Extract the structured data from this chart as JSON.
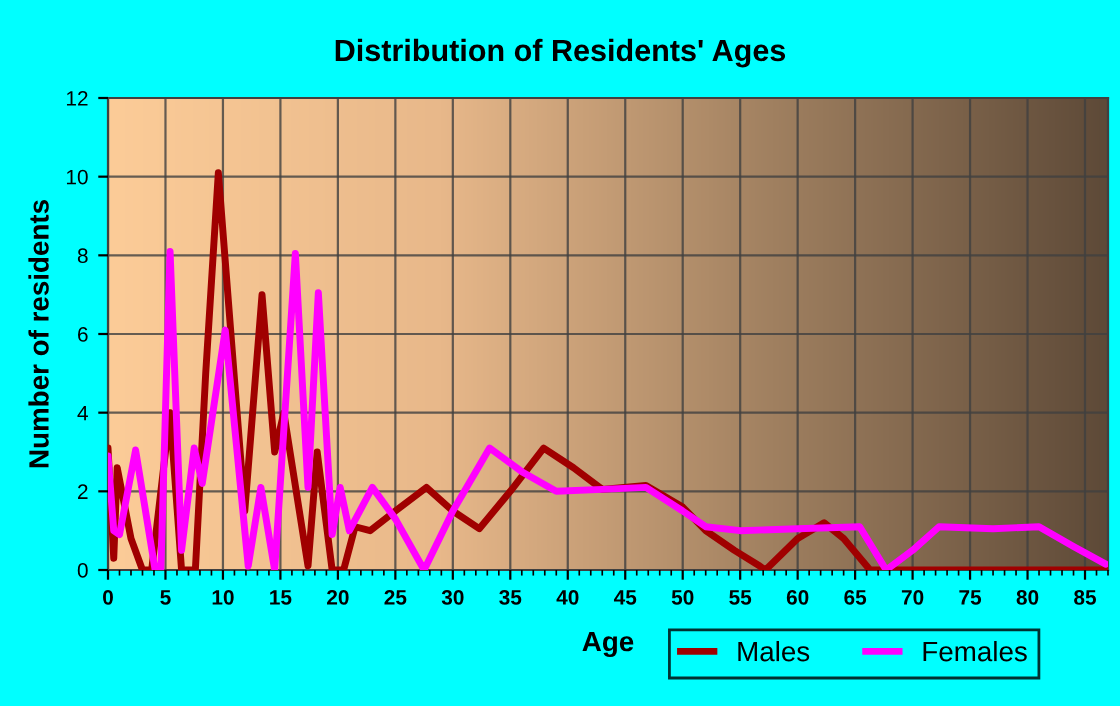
{
  "chart_data": {
    "type": "line",
    "title": "Distribution of Residents' Ages",
    "xlabel": "Age",
    "ylabel": "Number of residents",
    "xlim": [
      0,
      87
    ],
    "ylim": [
      0,
      12
    ],
    "xticks": [
      0,
      5,
      10,
      15,
      20,
      25,
      30,
      35,
      40,
      45,
      50,
      55,
      60,
      65,
      70,
      75,
      80,
      85
    ],
    "yticks": [
      0,
      2,
      4,
      6,
      8,
      10,
      12
    ],
    "grid": true,
    "legend": "bottom right",
    "line_style": "solid",
    "marker": "none",
    "series": [
      {
        "name": "Males",
        "color": "#a00000",
        "x": [
          0,
          0.5,
          0.8,
          2,
          3,
          3.8,
          5.4,
          6.4,
          7.6,
          8.5,
          9.6,
          11.9,
          13.4,
          14.5,
          15.3,
          17.4,
          18.2,
          19.5,
          20.5,
          21.5,
          22.8,
          25,
          27.7,
          30,
          32.3,
          35,
          37.9,
          40.5,
          43,
          46.8,
          50,
          52,
          54.5,
          56.7,
          57.2,
          60,
          62.3,
          64,
          66.3,
          70,
          80,
          87
        ],
        "values": [
          3.1,
          0.3,
          2.6,
          0.8,
          0,
          0,
          4,
          0,
          0,
          5,
          10.1,
          1.5,
          7,
          3,
          4,
          0.1,
          3,
          0,
          0,
          1.1,
          1,
          1.5,
          2.1,
          1.5,
          1.05,
          2,
          3.1,
          2.6,
          2.05,
          2.15,
          1.6,
          1,
          0.5,
          0.1,
          0,
          0.8,
          1.2,
          0.8,
          0,
          0,
          0,
          0
        ]
      },
      {
        "name": "Females",
        "color": "#ff00ff",
        "x": [
          0,
          0.5,
          1,
          2.4,
          4.1,
          4.6,
          5.4,
          6.4,
          7.5,
          8.2,
          10.2,
          12.2,
          13.3,
          14.5,
          16.3,
          17.4,
          18.3,
          19.5,
          20.2,
          21,
          23,
          25,
          27.5,
          30,
          33.2,
          36,
          39,
          43,
          46.8,
          50,
          52,
          55,
          60,
          65.4,
          67.7,
          70,
          72.3,
          77,
          81,
          84,
          86.8
        ],
        "values": [
          2.9,
          1,
          0.9,
          3.05,
          0,
          0,
          8.1,
          0.5,
          3.1,
          2.2,
          6.1,
          0.1,
          2.1,
          0,
          8.05,
          2.1,
          7.05,
          0.9,
          2.1,
          1,
          2.1,
          1.3,
          0,
          1.5,
          3.1,
          2.5,
          2,
          2.05,
          2.1,
          1.5,
          1.1,
          1,
          1.05,
          1.1,
          0,
          0.5,
          1.1,
          1.05,
          1.1,
          0.6,
          0.15
        ]
      }
    ]
  }
}
